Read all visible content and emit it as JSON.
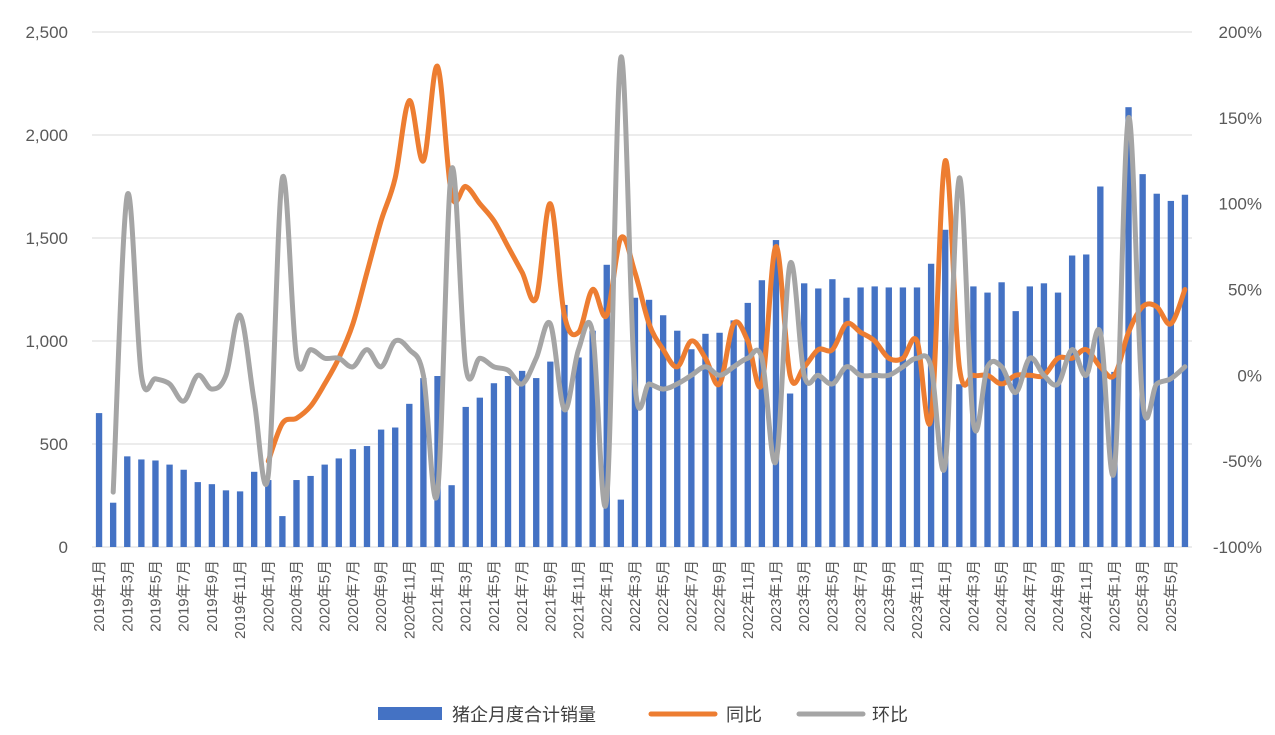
{
  "chart_data": {
    "type": "bar+line",
    "title": "",
    "x": [
      "2019年1月",
      "2019年2月",
      "2019年3月",
      "2019年4月",
      "2019年5月",
      "2019年6月",
      "2019年7月",
      "2019年8月",
      "2019年9月",
      "2019年10月",
      "2019年11月",
      "2019年12月",
      "2020年1月",
      "2020年2月",
      "2020年3月",
      "2020年4月",
      "2020年5月",
      "2020年6月",
      "2020年7月",
      "2020年8月",
      "2020年9月",
      "2020年10月",
      "2020年11月",
      "2020年12月",
      "2021年1月",
      "2021年2月",
      "2021年3月",
      "2021年4月",
      "2021年5月",
      "2021年6月",
      "2021年7月",
      "2021年8月",
      "2021年9月",
      "2021年10月",
      "2021年11月",
      "2021年12月",
      "2022年1月",
      "2022年2月",
      "2022年3月",
      "2022年4月",
      "2022年5月",
      "2022年6月",
      "2022年7月",
      "2022年8月",
      "2022年9月",
      "2022年10月",
      "2022年11月",
      "2022年12月",
      "2023年1月",
      "2023年2月",
      "2023年3月",
      "2023年4月",
      "2023年5月",
      "2023年6月",
      "2023年7月",
      "2023年8月",
      "2023年9月",
      "2023年10月",
      "2023年11月",
      "2023年12月",
      "2024年1月",
      "2024年2月",
      "2024年3月",
      "2024年4月",
      "2024年5月",
      "2024年6月",
      "2024年7月",
      "2024年8月",
      "2024年9月",
      "2024年10月",
      "2024年11月",
      "2024年12月",
      "2025年1月",
      "2025年2月",
      "2025年3月",
      "2025年4月",
      "2025年5月",
      "2025年6月"
    ],
    "x_tick_labels": [
      "2019年1月",
      "2019年3月",
      "2019年5月",
      "2019年7月",
      "2019年9月",
      "2019年11月",
      "2020年1月",
      "2020年3月",
      "2020年5月",
      "2020年7月",
      "2020年9月",
      "2020年11月",
      "2021年1月",
      "2021年3月",
      "2021年5月",
      "2021年7月",
      "2021年9月",
      "2021年11月",
      "2022年1月",
      "2022年3月",
      "2022年5月",
      "2022年7月",
      "2022年9月",
      "2022年11月",
      "2023年1月",
      "2023年3月",
      "2023年5月",
      "2023年7月",
      "2023年9月",
      "2023年11月",
      "2024年1月",
      "2024年3月",
      "2024年5月",
      "2024年7月",
      "2024年9月",
      "2024年11月",
      "2025年1月",
      "2025年3月",
      "2025年5月"
    ],
    "y_left": {
      "lim": [
        0,
        2500
      ],
      "ticks": [
        "0",
        "500",
        "1,000",
        "1,500",
        "2,000",
        "2,500"
      ]
    },
    "y_right": {
      "lim": [
        -100,
        200
      ],
      "ticks": [
        "-100%",
        "-50%",
        "0%",
        "50%",
        "100%",
        "150%",
        "200%"
      ]
    },
    "grid": true,
    "legend_position": "bottom",
    "series": [
      {
        "name": "猪企月度合计销量",
        "type": "bar",
        "axis": "left",
        "color": "#4472C4",
        "values": [
          650,
          215,
          440,
          425,
          420,
          400,
          375,
          315,
          305,
          275,
          270,
          365,
          325,
          150,
          325,
          345,
          400,
          430,
          475,
          490,
          570,
          580,
          695,
          820,
          830,
          300,
          680,
          725,
          795,
          830,
          855,
          820,
          900,
          1175,
          920,
          1050,
          1370,
          230,
          1210,
          1200,
          1125,
          1050,
          960,
          1035,
          1040,
          1100,
          1185,
          1295,
          1490,
          745,
          1280,
          1255,
          1300,
          1210,
          1260,
          1265,
          1260,
          1260,
          1260,
          1375,
          1540,
          790,
          1265,
          1235,
          1285,
          1145,
          1265,
          1280,
          1235,
          1415,
          1420,
          1750,
          850,
          2135,
          1810,
          1715,
          1680,
          1710
        ]
      },
      {
        "name": "同比",
        "type": "line",
        "axis": "right",
        "color": "#ED7D31",
        "values": [
          null,
          null,
          null,
          null,
          null,
          null,
          null,
          null,
          null,
          null,
          null,
          null,
          -50,
          -28,
          -25,
          -18,
          -5,
          10,
          30,
          60,
          90,
          115,
          160,
          125,
          180,
          105,
          110,
          100,
          90,
          75,
          60,
          45,
          100,
          35,
          25,
          50,
          35,
          80,
          60,
          30,
          15,
          5,
          20,
          10,
          -5,
          30,
          20,
          -5,
          75,
          0,
          5,
          15,
          15,
          30,
          25,
          20,
          10,
          10,
          20,
          -25,
          125,
          5,
          0,
          0,
          -5,
          0,
          0,
          0,
          10,
          10,
          15,
          5,
          0,
          25,
          40,
          40,
          30,
          50
        ]
      },
      {
        "name": "环比",
        "type": "line",
        "axis": "right",
        "color": "#A5A5A5",
        "values": [
          null,
          -68,
          105,
          0,
          -2,
          -5,
          -15,
          0,
          -8,
          0,
          35,
          -15,
          -58,
          115,
          10,
          15,
          10,
          10,
          5,
          15,
          5,
          20,
          15,
          0,
          -68,
          120,
          5,
          10,
          5,
          3,
          -5,
          10,
          30,
          -20,
          15,
          25,
          -72,
          185,
          -5,
          -5,
          -8,
          -5,
          0,
          5,
          0,
          5,
          10,
          10,
          -50,
          65,
          0,
          0,
          -5,
          5,
          0,
          0,
          0,
          5,
          10,
          5,
          -52,
          115,
          -28,
          5,
          5,
          -10,
          10,
          0,
          -5,
          15,
          0,
          25,
          -55,
          150,
          -15,
          -5,
          -2,
          5
        ]
      }
    ]
  },
  "legend": {
    "items": [
      {
        "label": "猪企月度合计销量",
        "color": "#4472C4",
        "kind": "bar"
      },
      {
        "label": "同比",
        "color": "#ED7D31",
        "kind": "line"
      },
      {
        "label": "环比",
        "color": "#A5A5A5",
        "kind": "line"
      }
    ]
  }
}
